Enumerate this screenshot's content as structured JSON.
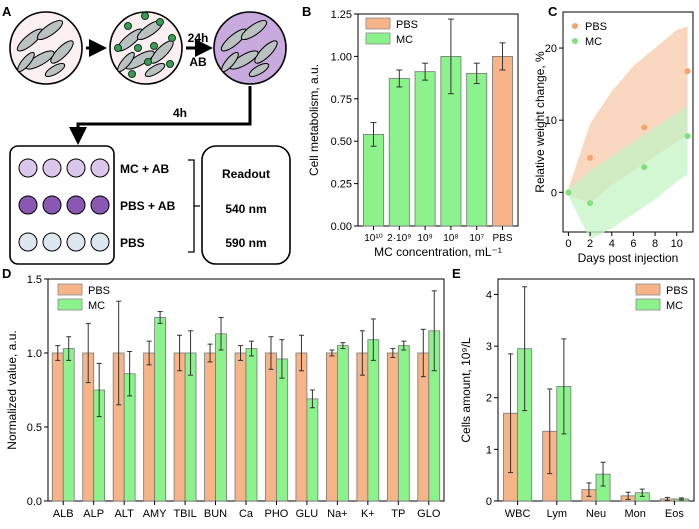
{
  "colors": {
    "pbs": "#f7b488",
    "mc": "#8cf28c",
    "pbs_dot": "#f4a46e",
    "mc_dot": "#7fe27f",
    "purple_light": "#dcc7ec",
    "purple_dark": "#8a57b2",
    "pale": "#dde7ef",
    "cell_fill": "#b9c1c1",
    "particle": "#3a9c55"
  },
  "panel_labels": {
    "A": "A",
    "B": "B",
    "C": "C",
    "D": "D",
    "E": "E"
  },
  "panel_a": {
    "step1": "24h",
    "step2": "AB",
    "arrow_time": "4h",
    "rows": [
      "MC + AB",
      "PBS + AB",
      "PBS"
    ],
    "readout_title": "Readout",
    "readout_values": [
      "540 nm",
      "590 nm"
    ]
  },
  "chart_data": [
    {
      "id": "B",
      "type": "bar",
      "categories": [
        "10¹⁰",
        "2·10⁹",
        "10⁹",
        "10⁸",
        "10⁷",
        "PBS"
      ],
      "category_group": [
        "MC",
        "MC",
        "MC",
        "MC",
        "MC",
        "PBS"
      ],
      "values": [
        0.54,
        0.87,
        0.91,
        1.0,
        0.9,
        1.0
      ],
      "errors": [
        0.07,
        0.05,
        0.05,
        0.22,
        0.06,
        0.08
      ],
      "legend": [
        "PBS",
        "MC"
      ],
      "ylabel": "Cell metabolism, a.u.",
      "xlabel": "MC concentration, mL⁻¹",
      "ylim": [
        0,
        1.25
      ],
      "yticks": [
        "0.00",
        "0.25",
        "0.50",
        "0.75",
        "1.00",
        "1.25"
      ]
    },
    {
      "id": "C",
      "type": "scatter",
      "legend": [
        "PBS",
        "MC"
      ],
      "series": [
        {
          "name": "PBS",
          "x": [
            0,
            2,
            7,
            11
          ],
          "y": [
            0,
            4.8,
            9.0,
            16.8
          ],
          "band_x": [
            0,
            2,
            4,
            6,
            8,
            10,
            11
          ],
          "band_low": [
            -0.5,
            -1.5,
            1.0,
            3.0,
            5.0,
            7.0,
            8.0
          ],
          "band_high": [
            0.5,
            9.5,
            14.0,
            17.5,
            20.0,
            22.5,
            23.0
          ]
        },
        {
          "name": "MC",
          "x": [
            0,
            2,
            7,
            11
          ],
          "y": [
            0,
            -1.5,
            3.5,
            7.8
          ],
          "band_x": [
            0,
            2,
            4,
            6,
            8,
            10,
            11
          ],
          "band_low": [
            -0.5,
            -6.5,
            -5.0,
            -3.0,
            -1.0,
            1.5,
            2.5
          ],
          "band_high": [
            0.5,
            3.0,
            5.0,
            7.0,
            9.0,
            11.0,
            12.0
          ]
        }
      ],
      "ylabel": "Relative weight change, %",
      "xlabel": "Days post injection",
      "xlim": [
        -0.5,
        11.5
      ],
      "ylim": [
        -5.5,
        25
      ],
      "xticks": [
        "0",
        "2",
        "4",
        "6",
        "8",
        "10"
      ],
      "yticks": [
        "0",
        "10",
        "20"
      ]
    },
    {
      "id": "D",
      "type": "bar",
      "categories": [
        "ALB",
        "ALP",
        "ALT",
        "AMY",
        "TBIL",
        "BUN",
        "Ca",
        "PHO",
        "GLU",
        "Na+",
        "K+",
        "TP",
        "GLO"
      ],
      "series": [
        {
          "name": "PBS",
          "values": [
            1,
            1,
            1,
            1,
            1,
            1,
            1,
            1,
            1,
            1,
            1,
            1,
            1
          ],
          "errors": [
            0.05,
            0.2,
            0.35,
            0.08,
            0.12,
            0.06,
            0.05,
            0.11,
            0.12,
            0.02,
            0.15,
            0.03,
            0.16
          ]
        },
        {
          "name": "MC",
          "values": [
            1.03,
            0.75,
            0.86,
            1.24,
            1.0,
            1.13,
            1.03,
            0.96,
            0.69,
            1.05,
            1.09,
            1.05,
            1.15
          ],
          "errors": [
            0.08,
            0.18,
            0.15,
            0.04,
            0.15,
            0.11,
            0.05,
            0.13,
            0.06,
            0.02,
            0.14,
            0.03,
            0.27
          ]
        }
      ],
      "legend": [
        "PBS",
        "MC"
      ],
      "ylabel": "Normalized value, a.u.",
      "ylim": [
        0,
        1.5
      ],
      "yticks": [
        "0.0",
        "0.5",
        "1.0",
        "1.5"
      ]
    },
    {
      "id": "E",
      "type": "bar",
      "categories": [
        "WBC",
        "Lym",
        "Neu",
        "Mon",
        "Eos"
      ],
      "series": [
        {
          "name": "PBS",
          "values": [
            1.7,
            1.35,
            0.22,
            0.1,
            0.04
          ],
          "errors": [
            1.15,
            0.82,
            0.13,
            0.07,
            0.03
          ]
        },
        {
          "name": "MC",
          "values": [
            2.95,
            2.22,
            0.52,
            0.16,
            0.04
          ],
          "errors": [
            1.2,
            0.92,
            0.23,
            0.07,
            0.02
          ]
        }
      ],
      "legend": [
        "PBS",
        "MC"
      ],
      "ylabel": "Cells amount, 10⁹/L",
      "ylim": [
        0,
        4.3
      ],
      "yticks": [
        "0",
        "1",
        "2",
        "3",
        "4"
      ]
    }
  ]
}
